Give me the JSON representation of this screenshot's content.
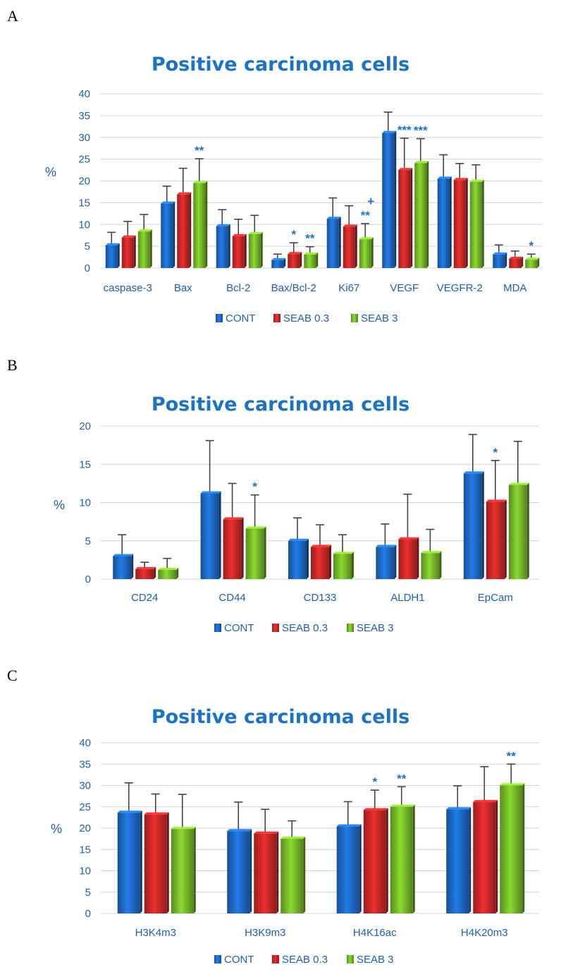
{
  "panels": [
    {
      "label": "A"
    },
    {
      "label": "B"
    },
    {
      "label": "C"
    }
  ],
  "colors": {
    "CONT": "#1e6fd0",
    "SEAB 0.3": "#d42a2a",
    "SEAB 3": "#7cc22a",
    "error": "#444444",
    "annotation": "#1a73c7"
  },
  "chart_data": [
    {
      "type": "bar",
      "title": "Positive carcinoma cells",
      "xlabel": "",
      "ylabel": "%",
      "ylim": [
        0,
        40
      ],
      "yticks": [
        0,
        5,
        10,
        15,
        20,
        25,
        30,
        35,
        40
      ],
      "categories": [
        "caspase-3",
        "Bax",
        "Bcl-2",
        "Bax/Bcl-2",
        "Ki67",
        "VEGF",
        "VEGFR-2",
        "MDA"
      ],
      "series": [
        {
          "name": "CONT",
          "values": [
            5.2,
            14.8,
            9.6,
            1.8,
            11.3,
            31.0,
            20.5,
            3.1
          ],
          "errors": [
            3.0,
            4.0,
            3.8,
            1.4,
            4.8,
            4.8,
            5.5,
            2.2
          ]
        },
        {
          "name": "SEAB 0.3",
          "values": [
            7.0,
            16.9,
            7.3,
            3.2,
            9.5,
            22.5,
            20.2,
            2.1
          ],
          "errors": [
            3.7,
            6.0,
            3.9,
            2.6,
            4.8,
            7.3,
            3.8,
            1.8
          ]
        },
        {
          "name": "SEAB 3",
          "values": [
            8.4,
            19.5,
            7.8,
            3.1,
            6.6,
            24.1,
            19.8,
            1.9
          ],
          "errors": [
            3.9,
            5.6,
            4.3,
            1.8,
            3.6,
            5.6,
            3.9,
            1.3
          ]
        }
      ],
      "annotations": [
        {
          "category": "Bax",
          "series": "SEAB 3",
          "text": "**"
        },
        {
          "category": "Bax/Bcl-2",
          "series": "SEAB 0.3",
          "text": "*"
        },
        {
          "category": "Bax/Bcl-2",
          "series": "SEAB 3",
          "text": "**"
        },
        {
          "category": "Ki67",
          "series": "SEAB 3",
          "text": "**",
          "extra": "+"
        },
        {
          "category": "VEGF",
          "series": "SEAB 0.3",
          "text": "***"
        },
        {
          "category": "VEGF",
          "series": "SEAB 3",
          "text": "***"
        },
        {
          "category": "MDA",
          "series": "SEAB 3",
          "text": "*"
        }
      ],
      "legend": [
        "CONT",
        "SEAB 0.3",
        "SEAB 3"
      ]
    },
    {
      "type": "bar",
      "title": "Positive carcinoma cells",
      "xlabel": "",
      "ylabel": "%",
      "ylim": [
        0,
        20
      ],
      "yticks": [
        0,
        5,
        10,
        15,
        20
      ],
      "categories": [
        "CD24",
        "CD44",
        "CD133",
        "ALDH1",
        "EpCam"
      ],
      "series": [
        {
          "name": "CONT",
          "values": [
            3.0,
            11.2,
            5.0,
            4.2,
            13.8
          ],
          "errors": [
            2.8,
            6.9,
            3.0,
            3.0,
            5.1
          ]
        },
        {
          "name": "SEAB 0.3",
          "values": [
            1.3,
            7.8,
            4.2,
            5.2,
            10.1
          ],
          "errors": [
            0.9,
            4.7,
            2.9,
            5.9,
            5.4
          ]
        },
        {
          "name": "SEAB 3",
          "values": [
            1.2,
            6.6,
            3.3,
            3.4,
            12.3
          ],
          "errors": [
            1.5,
            4.4,
            2.5,
            3.1,
            5.7
          ]
        }
      ],
      "annotations": [
        {
          "category": "CD44",
          "series": "SEAB 3",
          "text": "*"
        },
        {
          "category": "EpCam",
          "series": "SEAB 0.3",
          "text": "*"
        }
      ],
      "legend": [
        "CONT",
        "SEAB 0.3",
        "SEAB 3"
      ]
    },
    {
      "type": "bar",
      "title": "Positive carcinoma cells",
      "xlabel": "",
      "ylabel": "%",
      "ylim": [
        0,
        40
      ],
      "yticks": [
        0,
        5,
        10,
        15,
        20,
        25,
        30,
        35,
        40
      ],
      "categories": [
        "H3K4m3",
        "H3K9m3",
        "H4K16ac",
        "H4K20m3"
      ],
      "series": [
        {
          "name": "CONT",
          "values": [
            23.6,
            19.3,
            20.4,
            24.4
          ],
          "errors": [
            7.0,
            6.8,
            5.8,
            5.5
          ]
        },
        {
          "name": "SEAB 0.3",
          "values": [
            23.2,
            18.7,
            24.2,
            26.1
          ],
          "errors": [
            4.8,
            5.7,
            4.7,
            8.3
          ]
        },
        {
          "name": "SEAB 3",
          "values": [
            19.8,
            17.5,
            25.0,
            30.0
          ],
          "errors": [
            8.1,
            4.2,
            4.7,
            5.0
          ]
        }
      ],
      "annotations": [
        {
          "category": "H4K16ac",
          "series": "SEAB 0.3",
          "text": "*"
        },
        {
          "category": "H4K16ac",
          "series": "SEAB 3",
          "text": "**"
        },
        {
          "category": "H4K20m3",
          "series": "SEAB 3",
          "text": "**"
        }
      ],
      "legend": [
        "CONT",
        "SEAB 0.3",
        "SEAB 3"
      ]
    }
  ]
}
